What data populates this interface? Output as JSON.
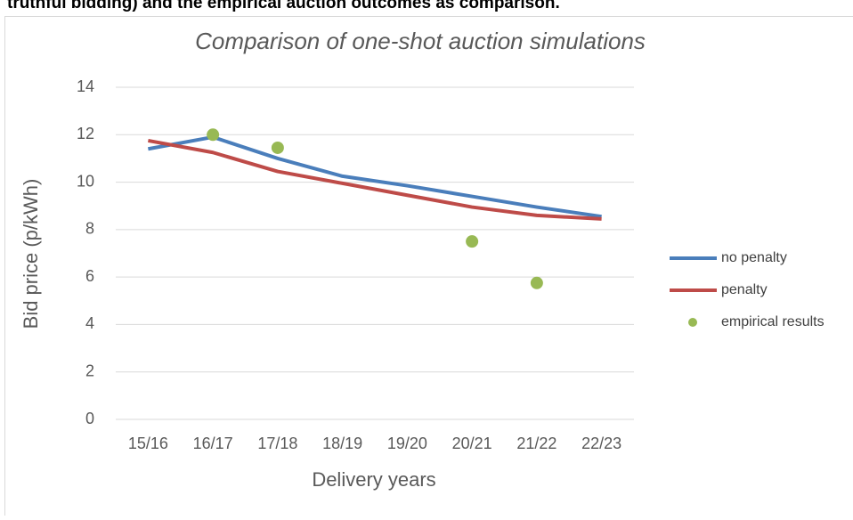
{
  "caption": "truthful bidding) and the empirical auction outcomes as comparison.",
  "chart_data": {
    "type": "line",
    "title": "Comparison of one-shot auction simulations",
    "x_label": "Delivery years",
    "y_label": "Bid price (p/kWh)",
    "categories": [
      "15/16",
      "16/17",
      "17/18",
      "18/19",
      "19/20",
      "20/21",
      "21/22",
      "22/23"
    ],
    "series": [
      {
        "name": "no penalty",
        "type": "line",
        "color": "#4a7ebb",
        "values": [
          11.4,
          11.9,
          11.0,
          10.25,
          9.85,
          9.4,
          8.95,
          8.55
        ]
      },
      {
        "name": "penalty",
        "type": "line",
        "color": "#be4b48",
        "values": [
          11.75,
          11.25,
          10.45,
          9.95,
          9.45,
          8.95,
          8.6,
          8.45
        ]
      },
      {
        "name": "empirical results",
        "type": "scatter",
        "color": "#98b954",
        "values": [
          null,
          12.0,
          11.45,
          null,
          null,
          7.5,
          5.75,
          null
        ]
      }
    ],
    "ylim": [
      0,
      14
    ],
    "yticks": [
      0,
      2,
      4,
      6,
      8,
      10,
      12,
      14
    ],
    "grid": true,
    "legend": "right"
  }
}
